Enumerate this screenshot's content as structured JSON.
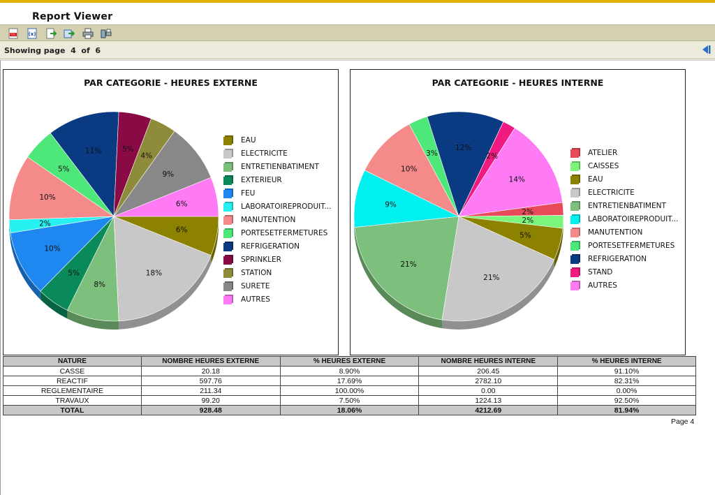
{
  "app": {
    "title": "Report Viewer",
    "accent": "#e0b100"
  },
  "toolbar": {
    "buttons": [
      {
        "name": "toc-icon"
      },
      {
        "name": "parameters-icon"
      },
      {
        "name": "export-icon"
      },
      {
        "name": "export-data-icon"
      },
      {
        "name": "print-icon"
      },
      {
        "name": "print-server-icon"
      }
    ]
  },
  "pager": {
    "label": "Showing page  4  of  6"
  },
  "chart_data": [
    {
      "type": "pie",
      "title": "PAR CATEGORIE - HEURES EXTERNE",
      "slices": [
        {
          "label": "EAU",
          "value": 6,
          "text": "6%",
          "color": "#8c8200"
        },
        {
          "label": "ELECTRICITE",
          "value": 18,
          "text": "18%",
          "color": "#c8c8c8"
        },
        {
          "label": "ENTRETIENBATIMENT",
          "value": 8,
          "text": "8%",
          "color": "#7dc07d"
        },
        {
          "label": "EXTERIEUR",
          "value": 5,
          "text": "5%",
          "color": "#0a8a5a"
        },
        {
          "label": "FEU",
          "value": 10,
          "text": "10%",
          "color": "#1e87f0"
        },
        {
          "label": "LABORATOIREPRODUIT...",
          "value": 2,
          "text": "2%",
          "color": "#26f0f0"
        },
        {
          "label": "MANUTENTION",
          "value": 10,
          "text": "10%",
          "color": "#f58a8a"
        },
        {
          "label": "PORTESETFERMETURES",
          "value": 5,
          "text": "5%",
          "color": "#4ee87a"
        },
        {
          "label": "REFRIGERATION",
          "value": 11,
          "text": "11%",
          "color": "#0a3a82"
        },
        {
          "label": "SPRINKLER",
          "value": 5,
          "text": "5%",
          "color": "#8a0a46"
        },
        {
          "label": "STATION",
          "value": 4,
          "text": "4%",
          "color": "#8e8c3a"
        },
        {
          "label": "SURETE",
          "value": 9,
          "text": "9%",
          "color": "#888888"
        },
        {
          "label": "AUTRES",
          "value": 6,
          "text": "6%",
          "color": "#ff7af5"
        }
      ]
    },
    {
      "type": "pie",
      "title": "PAR CATEGORIE - HEURES INTERNE",
      "slices": [
        {
          "label": "ATELIER",
          "value": 2,
          "text": "2%",
          "color": "#e84a5a"
        },
        {
          "label": "CAISSES",
          "value": 2,
          "text": "2%",
          "color": "#7cf57c"
        },
        {
          "label": "EAU",
          "value": 5,
          "text": "5%",
          "color": "#8c8200"
        },
        {
          "label": "ELECTRICITE",
          "value": 21,
          "text": "21%",
          "color": "#c8c8c8"
        },
        {
          "label": "ENTRETIENBATIMENT",
          "value": 21,
          "text": "21%",
          "color": "#7dc07d"
        },
        {
          "label": "LABORATOIREPRODUIT...",
          "value": 9,
          "text": "9%",
          "color": "#00f0f0"
        },
        {
          "label": "MANUTENTION",
          "value": 10,
          "text": "10%",
          "color": "#f58a8a"
        },
        {
          "label": "PORTESETFERMETURES",
          "value": 3,
          "text": "3%",
          "color": "#4ee87a"
        },
        {
          "label": "REFRIGERATION",
          "value": 12,
          "text": "12%",
          "color": "#0a3a82"
        },
        {
          "label": "STAND",
          "value": 2,
          "text": "2%",
          "color": "#f01a82"
        },
        {
          "label": "AUTRES",
          "value": 14,
          "text": "14%",
          "color": "#ff7af5"
        }
      ]
    }
  ],
  "table": {
    "headers": [
      "NATURE",
      "NOMBRE HEURES EXTERNE",
      "% HEURES EXTERNE",
      "NOMBRE HEURES INTERNE",
      "% HEURES INTERNE"
    ],
    "rows": [
      [
        "CASSE",
        "20.18",
        "8.90%",
        "206.45",
        "91.10%"
      ],
      [
        "REACTIF",
        "597.76",
        "17.69%",
        "2782.10",
        "82.31%"
      ],
      [
        "REGLEMENTAIRE",
        "211.34",
        "100.00%",
        "0.00",
        "0.00%"
      ],
      [
        "TRAVAUX",
        "99.20",
        "7.50%",
        "1224.13",
        "92.50%"
      ]
    ],
    "total": [
      "TOTAL",
      "928.48",
      "18.06%",
      "4212.69",
      "81.94%"
    ]
  },
  "footer": {
    "page_label": "Page 4"
  }
}
